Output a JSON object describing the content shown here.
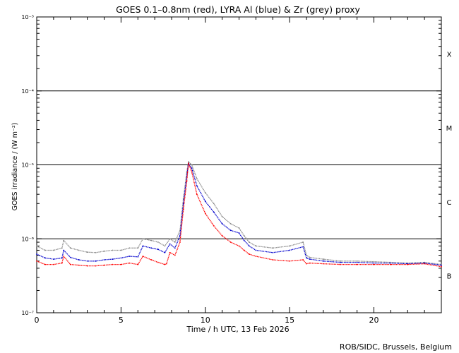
{
  "title": "GOES 0.1–0.8nm (red), LYRA Al (blue) & Zr (grey) proxy",
  "ylabel": "GOES irradiance / (W m⁻²)",
  "xlabel": "Time / h UTC, 13 Feb 2026",
  "credit": "ROB/SIDC, Brussels, Belgium",
  "colors": {
    "goes": "#ff0000",
    "lyra_al": "#0000cc",
    "lyra_zr": "#888888",
    "axis": "#000000"
  },
  "chart_data": {
    "type": "line",
    "title": "GOES 0.1–0.8nm (red), LYRA Al (blue) & Zr (grey) proxy",
    "xlabel": "Time / h UTC, 13 Feb 2026",
    "ylabel": "GOES irradiance / (W m⁻²)",
    "xlim": [
      0,
      24
    ],
    "ylim": [
      1e-07,
      0.001
    ],
    "yscale": "log",
    "x_ticks": [
      0,
      5,
      10,
      15,
      20
    ],
    "y_ticks": [
      {
        "value": 1e-07,
        "label": "10⁻⁷"
      },
      {
        "value": 1e-06,
        "label": "10⁻⁶"
      },
      {
        "value": 1e-05,
        "label": "10⁻⁵"
      },
      {
        "value": 0.0001,
        "label": "10⁻⁴"
      },
      {
        "value": 0.001,
        "label": "10⁻³"
      }
    ],
    "flare_class_lines": [
      1e-06,
      1e-05,
      0.0001
    ],
    "flare_classes": [
      {
        "label": "X",
        "value": 0.000316
      },
      {
        "label": "M",
        "value": 3.16e-05
      },
      {
        "label": "C",
        "value": 3.16e-06
      },
      {
        "label": "B",
        "value": 3.16e-07
      }
    ],
    "grid": false,
    "legend": "none",
    "series": [
      {
        "name": "GOES 0.1–0.8nm",
        "color": "#ff0000",
        "x": [
          0,
          0.5,
          1,
          1.5,
          1.6,
          2,
          2.5,
          3,
          3.5,
          4,
          4.5,
          5,
          5.5,
          6,
          6.3,
          6.8,
          7.2,
          7.6,
          7.7,
          7.9,
          8.2,
          8.5,
          8.7,
          8.9,
          9.0,
          9.2,
          9.5,
          10,
          10.5,
          11,
          11.5,
          12,
          12.3,
          12.6,
          13,
          14,
          15,
          15.8,
          16,
          16.2,
          17,
          18,
          19,
          20,
          21,
          22,
          23,
          24
        ],
        "y": [
          5e-07,
          4.5e-07,
          4.5e-07,
          4.7e-07,
          5.8e-07,
          4.5e-07,
          4.4e-07,
          4.3e-07,
          4.3e-07,
          4.4e-07,
          4.5e-07,
          4.5e-07,
          4.7e-07,
          4.5e-07,
          5.8e-07,
          5.2e-07,
          4.8e-07,
          4.5e-07,
          4.6e-07,
          6.5e-07,
          6e-07,
          9e-07,
          2.5e-06,
          6e-06,
          1.05e-05,
          8e-06,
          4e-06,
          2.2e-06,
          1.5e-06,
          1.1e-06,
          9e-07,
          8e-07,
          7e-07,
          6.2e-07,
          5.8e-07,
          5.2e-07,
          5e-07,
          5.2e-07,
          4.6e-07,
          4.7e-07,
          4.6e-07,
          4.5e-07,
          4.5e-07,
          4.5e-07,
          4.5e-07,
          4.5e-07,
          4.6e-07,
          4.2e-07
        ]
      },
      {
        "name": "LYRA Al proxy",
        "color": "#0000cc",
        "x": [
          0,
          0.5,
          1,
          1.5,
          1.6,
          2,
          2.5,
          3,
          3.5,
          4,
          4.5,
          5,
          5.5,
          6,
          6.3,
          6.8,
          7.2,
          7.6,
          7.9,
          8.2,
          8.5,
          8.7,
          8.9,
          9.0,
          9.2,
          9.5,
          10,
          10.5,
          11,
          11.5,
          12,
          12.3,
          12.6,
          13,
          14,
          15,
          15.8,
          16,
          16.2,
          17,
          18,
          19,
          20,
          21,
          22,
          23,
          24
        ],
        "y": [
          6.2e-07,
          5.5e-07,
          5.3e-07,
          5.5e-07,
          7e-07,
          5.6e-07,
          5.2e-07,
          5e-07,
          5e-07,
          5.2e-07,
          5.3e-07,
          5.5e-07,
          5.8e-07,
          5.7e-07,
          8e-07,
          7.5e-07,
          7.2e-07,
          6.5e-07,
          8.5e-07,
          7.5e-07,
          1.1e-06,
          3e-06,
          7e-06,
          1.05e-05,
          9e-06,
          5.2e-06,
          3.2e-06,
          2.3e-06,
          1.6e-06,
          1.3e-06,
          1.2e-06,
          9.5e-07,
          8e-07,
          7e-07,
          6.5e-07,
          7e-07,
          7.8e-07,
          5.5e-07,
          5.3e-07,
          5e-07,
          4.8e-07,
          4.8e-07,
          4.7e-07,
          4.7e-07,
          4.6e-07,
          4.7e-07,
          4.4e-07
        ]
      },
      {
        "name": "LYRA Zr proxy",
        "color": "#888888",
        "x": [
          0,
          0.5,
          1,
          1.5,
          1.6,
          2,
          2.5,
          3,
          3.5,
          4,
          4.5,
          5,
          5.5,
          6,
          6.3,
          6.8,
          7.2,
          7.6,
          7.9,
          8.2,
          8.5,
          8.7,
          8.9,
          9.0,
          9.2,
          9.5,
          10,
          10.5,
          11,
          11.5,
          12,
          12.3,
          12.6,
          13,
          14,
          15,
          15.8,
          16,
          16.2,
          17,
          18,
          19,
          20,
          21,
          22,
          23,
          24
        ],
        "y": [
          8e-07,
          7e-07,
          7e-07,
          7.5e-07,
          9.5e-07,
          7.5e-07,
          7e-07,
          6.6e-07,
          6.5e-07,
          6.8e-07,
          7e-07,
          7e-07,
          7.5e-07,
          7.5e-07,
          1e-06,
          9.5e-07,
          9e-07,
          8e-07,
          1e-06,
          9e-07,
          1.3e-06,
          3.5e-06,
          8e-06,
          1.1e-05,
          1e-05,
          6.5e-06,
          4.2e-06,
          3e-06,
          2e-06,
          1.6e-06,
          1.4e-06,
          1.1e-06,
          9e-07,
          8e-07,
          7.5e-07,
          8e-07,
          9e-07,
          6e-07,
          5.6e-07,
          5.3e-07,
          5e-07,
          5e-07,
          4.9e-07,
          4.8e-07,
          4.7e-07,
          4.8e-07,
          4.5e-07
        ]
      }
    ]
  }
}
